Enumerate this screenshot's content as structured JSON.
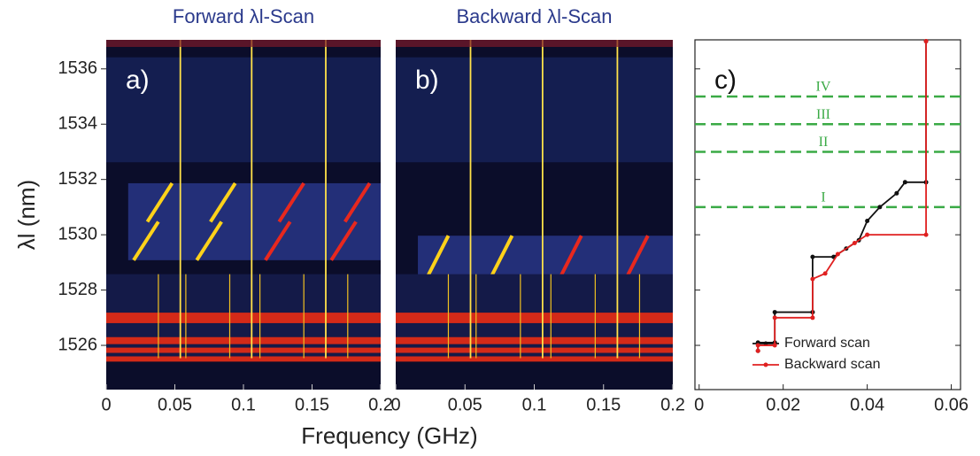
{
  "chart_data": [
    {
      "type": "heatmap",
      "title": "Forward λl-Scan",
      "panel_label": "a)",
      "y_label": "λl (nm)",
      "xlim": [
        0,
        0.2
      ],
      "xticks": [
        0,
        0.05,
        0.1,
        0.15,
        0.2
      ],
      "ylim": [
        1524.4,
        1537.05
      ],
      "yticks": [
        1526,
        1528,
        1530,
        1532,
        1534,
        1536
      ]
    },
    {
      "type": "heatmap",
      "title": "Backward λl-Scan",
      "panel_label": "b)",
      "x_label": "Frequency (GHz)",
      "xlim": [
        0,
        0.2
      ],
      "xticks": [
        0,
        0.05,
        0.1,
        0.15,
        0.2
      ],
      "ylim": [
        1524.4,
        1537.05
      ]
    },
    {
      "type": "line",
      "panel_label": "c)",
      "xlim": [
        -0.001,
        0.0622
      ],
      "xticks": [
        0,
        0.02,
        0.04,
        0.06
      ],
      "ylim": [
        1524.4,
        1537.05
      ],
      "yticks": [
        1526,
        1528,
        1530,
        1532,
        1534,
        1536
      ],
      "hlines": [
        {
          "y": 1535,
          "label": "IV"
        },
        {
          "y": 1534,
          "label": "III"
        },
        {
          "y": 1533,
          "label": "II"
        },
        {
          "y": 1531,
          "label": "I"
        }
      ],
      "hline_color": "#3aaa45",
      "legend": "lower right",
      "series": [
        {
          "name": "Forward scan",
          "color": "#111111",
          "x": [
            0.014,
            0.014,
            0.018,
            0.018,
            0.027,
            0.027,
            0.032,
            0.035,
            0.038,
            0.04,
            0.043,
            0.047,
            0.049,
            0.054,
            0.054
          ],
          "values": [
            1525.8,
            1526.1,
            1526.1,
            1527.2,
            1527.2,
            1529.2,
            1529.2,
            1529.5,
            1529.8,
            1530.5,
            1531.0,
            1531.5,
            1531.9,
            1531.9,
            1537.0
          ]
        },
        {
          "name": "Backward scan",
          "color": "#e02020",
          "x": [
            0.014,
            0.014,
            0.018,
            0.018,
            0.027,
            0.027,
            0.03,
            0.033,
            0.037,
            0.04,
            0.054,
            0.054
          ],
          "values": [
            1525.8,
            1526.0,
            1526.0,
            1527.0,
            1527.0,
            1528.4,
            1528.6,
            1529.3,
            1529.7,
            1530.0,
            1530.0,
            1537.0
          ]
        }
      ]
    }
  ]
}
